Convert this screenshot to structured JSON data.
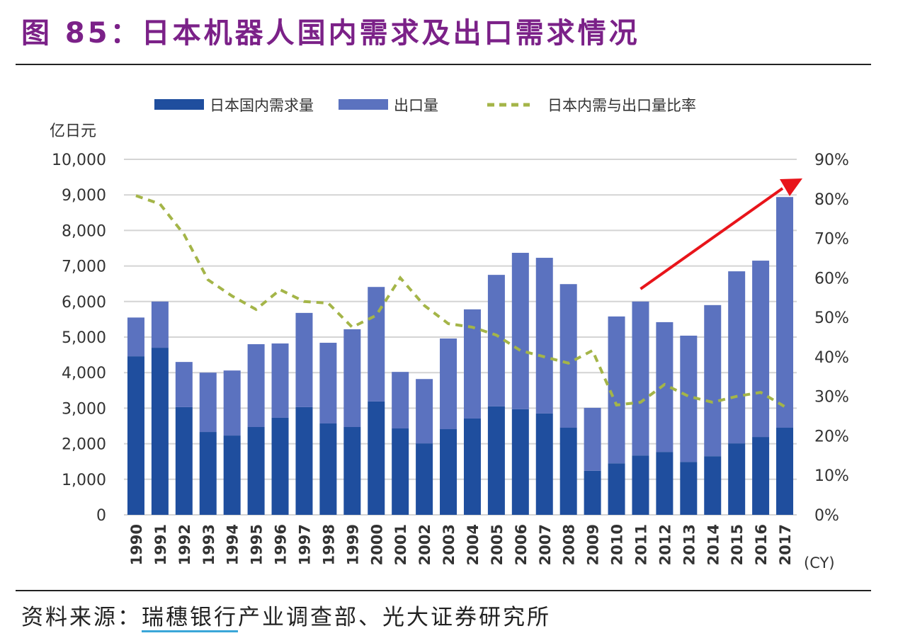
{
  "title": "图 85：日本机器人国内需求及出口需求情况",
  "source": {
    "label": "资料来源：",
    "underlined": "瑞穗银行",
    "rest": "产业调查部、光大证券研究所"
  },
  "chart_data": {
    "type": "bar",
    "stacked": true,
    "ylabel": "亿日元",
    "xunit": "(CY)",
    "categories": [
      "1990",
      "1991",
      "1992",
      "1993",
      "1994",
      "1995",
      "1996",
      "1997",
      "1998",
      "1999",
      "2000",
      "2001",
      "2002",
      "2003",
      "2004",
      "2005",
      "2006",
      "2007",
      "2008",
      "2009",
      "2010",
      "2011",
      "2012",
      "2013",
      "2014",
      "2015",
      "2016",
      "2017"
    ],
    "ylim": [
      0,
      10000
    ],
    "yticks": [
      "0",
      "1,000",
      "2,000",
      "3,000",
      "4,000",
      "5,000",
      "6,000",
      "7,000",
      "8,000",
      "9,000",
      "10,000"
    ],
    "y2lim": [
      0,
      90
    ],
    "y2ticks": [
      "0%",
      "10%",
      "20%",
      "30%",
      "40%",
      "50%",
      "60%",
      "70%",
      "80%",
      "90%"
    ],
    "grid": true,
    "legend_position": "top",
    "series": [
      {
        "name": "日本国内需求量",
        "type": "bar",
        "color": "#1f4e9e",
        "values": [
          4460,
          4700,
          3030,
          2330,
          2230,
          2470,
          2730,
          3030,
          2570,
          2470,
          3190,
          2430,
          2010,
          2410,
          2710,
          3050,
          2970,
          2850,
          2450,
          1240,
          1450,
          1670,
          1770,
          1490,
          1650,
          2010,
          2190,
          2450
        ]
      },
      {
        "name": "出口量",
        "type": "bar",
        "color": "#5b72bf",
        "values": [
          1090,
          1300,
          1270,
          1670,
          1830,
          2330,
          2090,
          2650,
          2270,
          2750,
          3220,
          1590,
          1810,
          2550,
          3070,
          3700,
          4400,
          4380,
          4040,
          1770,
          4130,
          4330,
          3650,
          3550,
          4250,
          4840,
          4960,
          6490
        ]
      },
      {
        "name": "日本内需与出口量比率",
        "type": "line",
        "axis": "right",
        "color": "#a4b548",
        "dash": true,
        "values": [
          80.8,
          78.7,
          71,
          59.5,
          55.4,
          52,
          57,
          54,
          53.6,
          47.5,
          50.5,
          60,
          53,
          48.4,
          47.5,
          45.5,
          41.6,
          40,
          38.4,
          41.6,
          27.8,
          28.5,
          33,
          30,
          28.5,
          30,
          31,
          27.4
        ]
      }
    ],
    "annotation": {
      "type": "arrow",
      "color": "#e8141a",
      "from_year": "2011",
      "to_year": "2017"
    }
  }
}
